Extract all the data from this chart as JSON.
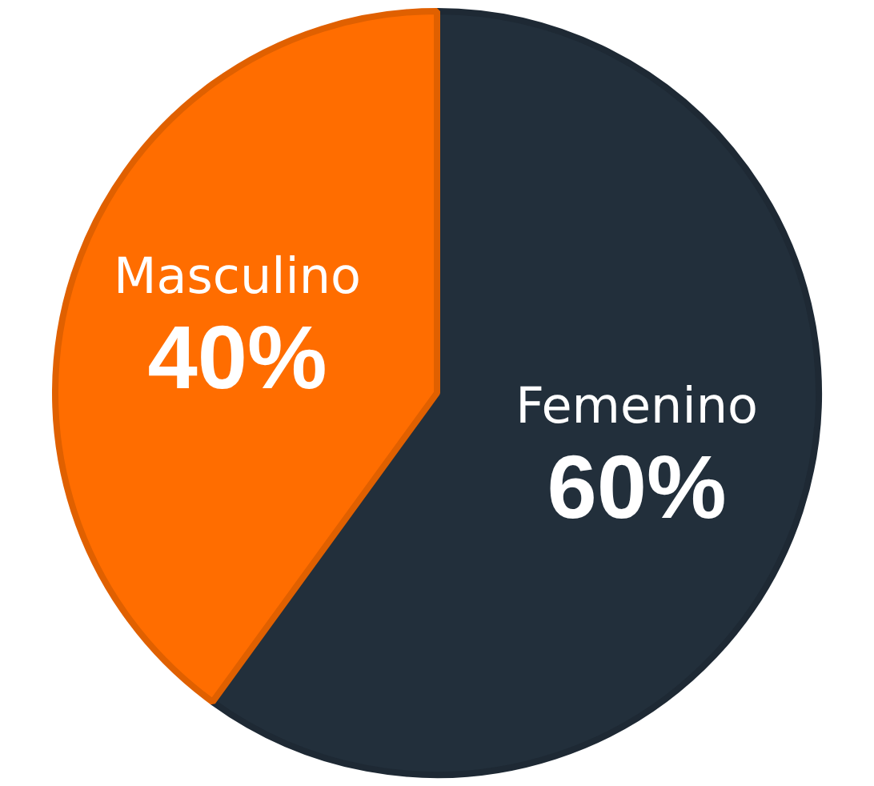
{
  "chart_data": {
    "type": "pie",
    "categories": [
      "Femenino",
      "Masculino"
    ],
    "values": [
      60,
      40
    ],
    "value_labels": [
      "60%",
      "40%"
    ],
    "colors": [
      "#222f3b",
      "#ff6d00"
    ],
    "legend": false
  }
}
